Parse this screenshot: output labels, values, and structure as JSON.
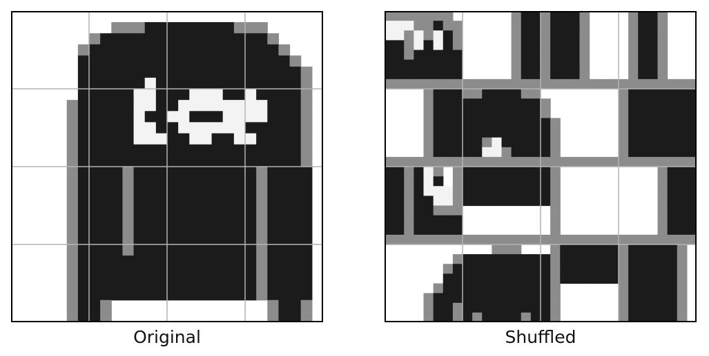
{
  "figure": {
    "panels": [
      {
        "caption": "Original",
        "pixels_ref": "original"
      },
      {
        "caption": "Shuffled",
        "pixels_ref": "shuffled"
      }
    ],
    "grid": {
      "patch_rows": 4,
      "patch_cols": 4,
      "grid_color": "#b4b4b4",
      "border_color": "#000000"
    }
  },
  "image": {
    "description_level": "grayscale pixel art 28x28",
    "original": [
      "wwwwwwwwwwwwwwwwwwwwwwwwwwww",
      "wwwwwwwwwgggKKKKKKKKgggwwwww",
      "wwwwwwwgKKKKKKKKKKKKKKKgwwww",
      "wwwwwwgKKKKKKKKKKKKKKKKKgwww",
      "wwwwwwKKKKKKKKKKKKKKKKKKKgww",
      "wwwwwwKKKKKKKKKKKKKKKKKKKKgw",
      "wwwwwwKKKKKKWKKKKKKKKKKKKKgw",
      "wwwwwwKKKKKWWKKKWWWKKWKKKKgw",
      "wwwwwgKKKKKWWKKWWWWWWWWKKKgw",
      "wwwwwgKKKKKWKKWWKKKWWWWKKKgw",
      "wwwwwgKKKKKWWKKWWWWWWKKKKKgw",
      "wwwwwgKKKKKWWWKKWWKKWWKKKKgw",
      "wwwwwgKKKKKKKKKKKKKKKKKKKKgw",
      "wwwwwgKKKKKKKKKKKKKKKKKKKKgw",
      "wwwwwgKKKKgKKKKKKKKKKKgKKKKw",
      "wwwwwgKKKKgKKKKKKKKKKKgKKKKw",
      "wwwwwgKKKKgKKKKKKKKKKKgKKKKw",
      "wwwwwgKKKKgKKKKKKKKKKKgKKKKw",
      "wwwwwgKKKKgKKKKKKKKKKKgKKKKw",
      "wwwwwgKKKKgKKKKKKKKKKKgKKKKw",
      "wwwwwgKKKKgKKKKKKKKKKKgKKKKw",
      "wwwwwgKKKKgKKKKKKKKKKKgKKKKw",
      "wwwwwgKKKKKKKKKKKKKKKKgKKKKw",
      "wwwwwgKKKKKKKKKKKKKKKKgKKKKw",
      "wwwwwgKKKKKKKKKKKKKKKKgKKKKw",
      "wwwwwgKKKKKKKKKKKKKKKKgKKKKw",
      "wwwwwgKKgwwwwwwwwwwwwwwgKKgw",
      "wwwwwgKKgwwwwwwwwwwwwwwgKKgw"
    ],
    "shuffled": [
      "gggggggwwwwwwgKKgKKKgwwwwgKKgwww",
      "WWWggKggwwwwwgKKgKKKgwwwwgKKgwww",
      "WWgWgWKgwwwwwgKKgKKKgwwwwgKKgwww",
      "KKgWKWKgwwwwwgKKgKKKgwwwwgKKgwww",
      "KKgKKKKKwwwwwgKKgKKKgwwwwgKKgwww",
      "KKKKKKKKwwwwwgKKgKKKgwwwwgKKgwww",
      "KKKKKKKKwwwwwgKKgKKKgwwwwgKKgwww",
      "gggggggggggggggggggggggggggggggg",
      "wwwwgKKKggKKKKggwwwwwwwwgKKKKKKK",
      "wwwwgKKKKKKKKKKKgwwwwwwwgKKKKKKK",
      "wwwwgKKKKKKKKKKKgwwwwwwwgKKKKKKK",
      "wwwwgKKKKKKKKKKKKgwwwwwwgKKKKKKK",
      "wwwwgKKKKKKKKKKKKgwwwwwwgKKKKKKK",
      "wwwwgKKKKKgWKKKKKgwwwwwwgKKKKKKK",
      "wwwwgKKKKKWWgKKKKgwwwwwwgKKKKKKK",
      "gggggggggggggggggggggggggggggggg",
      "KKgKWgwgKKKKKKKKKgwwwwwwwwwwgKKK",
      "KKgKWKwgKKKKKKKKKgwwwwwwwwwwgKKK",
      "KKgKWWWgKKKKKKKKKgwwwwwwwwwwgKKK",
      "KKgKKWWgKKKKKKKKKgwwwwwwwwwwgKKK",
      "KKgKKgggwwwwwwwwwgwwwwwwwwwwgKKK",
      "KKgKKKKKwwwwwwwwwgwwwwwwwwwwgKKK",
      "KKgKKKKKwwwwwwwwwgwwwwwwwwwwgKKK",
      "gggggggggggggggggggggggggggggggg",
      "wwwwwwwwwwwgggwwwgKKKKKKgKKKKKgw",
      "wwwwwwwgKKKKKKKKKgKKKKKKgKKKKKgw",
      "wwwwwwgKKKKKKKKKKgKKKKKKgKKKKKgw",
      "wwwwwwKKKKKKKKKKKgKKKKKKgKKKKKgw",
      "wwwwwgKKKKKKKKKKKgwwwwwwgKKKKKgw",
      "wwwwgKKKKKKKKKKKKgwwwwwwgKKKKKgw",
      "wwwwgKKgKKKKKKKKKgwwwwwwgKKKKKgw",
      "wwwwgKKgKgKKKKgKKgwwwwwwgKKKKKgw"
    ],
    "palette": {
      "w": "#ffffff",
      "g": "#8c8c8c",
      "K": "#1b1b1b",
      "W": "#f3f3f3"
    }
  }
}
